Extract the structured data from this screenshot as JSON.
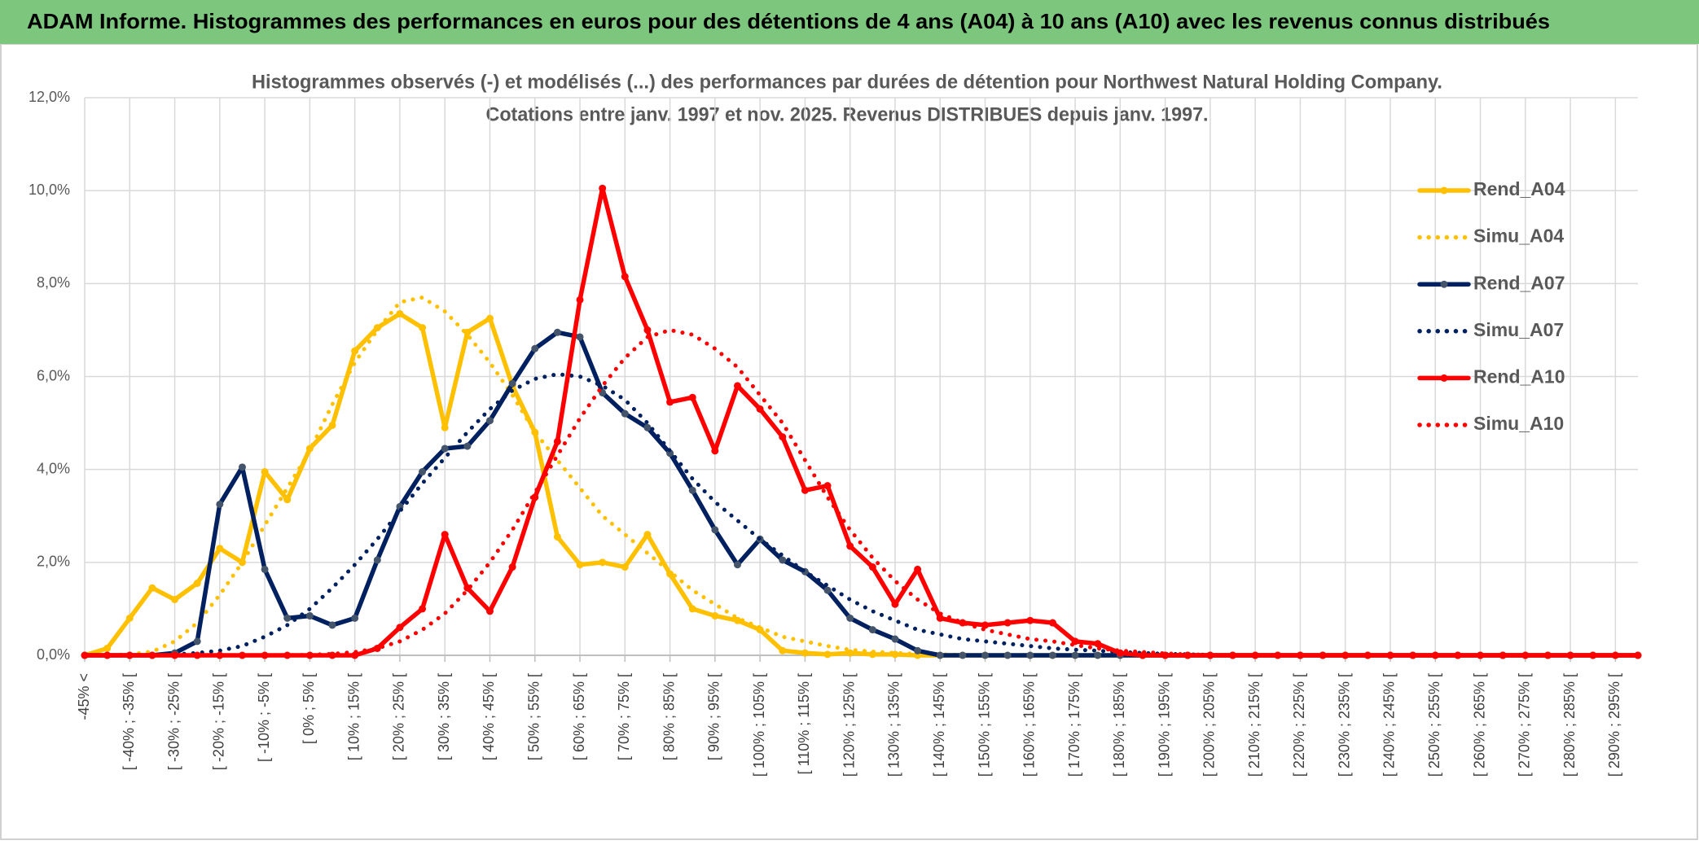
{
  "header": {
    "title": "ADAM Informe. Histogrammes des performances en euros pour des détentions de 4 ans (A04) à 10 ans (A10) avec les revenus connus distribués"
  },
  "chart_data": {
    "type": "line",
    "title": "Histogrammes observés (-) et modélisés (...) des performances par durées de détention pour Northwest Natural Holding Company.",
    "subtitle": "Cotations entre janv. 1997 et nov. 2025. Revenus DISTRIBUES depuis janv. 1997.",
    "categories": [
      "-45% <",
      null,
      "[ -40% ; -35% [",
      null,
      "[ -30% ; -25% [",
      null,
      "[ -20% ; -15% [",
      null,
      "[ -10% ; -5% [",
      null,
      "[ 0% ; 5% [",
      null,
      "[ 10% ; 15% [",
      null,
      "[ 20% ; 25% [",
      null,
      "[ 30% ; 35% [",
      null,
      "[ 40% ; 45% [",
      null,
      "[ 50% ; 55% [",
      null,
      "[ 60% ; 65% [",
      null,
      "[ 70% ; 75% [",
      null,
      "[ 80% ; 85% [",
      null,
      "[ 90% ; 95% [",
      null,
      "[ 100% ; 105% [",
      null,
      "[ 110% ; 115% [",
      null,
      "[ 120% ; 125% [",
      null,
      "[ 130% ; 135% [",
      null,
      "[ 140% ; 145% [",
      null,
      "[ 150% ; 155% [",
      null,
      "[ 160% ; 165% [",
      null,
      "[ 170% ; 175% [",
      null,
      "[ 180% ; 185% [",
      null,
      "[ 190% ; 195% [",
      null,
      "[ 200% ; 205% [",
      null,
      "[ 210% ; 215% [",
      null,
      "[ 220% ; 225% [",
      null,
      "[ 230% ; 235% [",
      null,
      "[ 240% ; 245% [",
      null,
      "[ 250% ; 255% [",
      null,
      "[ 260% ; 265% [",
      null,
      "[ 270% ; 275% [",
      null,
      "[ 280% ; 285% [",
      null,
      "[ 290% ; 295% [",
      null
    ],
    "series": [
      {
        "name": "Rend_A04",
        "color": "#ffc000",
        "line_style": "solid",
        "markers": true,
        "values": [
          0,
          0.15,
          0.8,
          1.45,
          1.2,
          1.55,
          2.3,
          2.0,
          3.95,
          3.35,
          4.45,
          4.95,
          6.55,
          7.05,
          7.35,
          7.05,
          4.9,
          6.95,
          7.25,
          5.8,
          4.8,
          2.55,
          1.95,
          2.0,
          1.9,
          2.6,
          1.75,
          1.0,
          0.85,
          0.75,
          0.55,
          0.1,
          0.05,
          0.02,
          0.05,
          0.02,
          0.02,
          0,
          0,
          0,
          0,
          0,
          0,
          0,
          0,
          0,
          0,
          0,
          0,
          0,
          0,
          0,
          0,
          0,
          0,
          0,
          0,
          0,
          0,
          0,
          0,
          0,
          0,
          0,
          0,
          0,
          0,
          0,
          0,
          0
        ]
      },
      {
        "name": "Simu_A04",
        "color": "#ffc000",
        "line_style": "dotted",
        "markers": false,
        "values": [
          0,
          0,
          0.02,
          0.08,
          0.3,
          0.7,
          1.3,
          2.0,
          2.8,
          3.6,
          4.4,
          5.4,
          6.3,
          7.0,
          7.6,
          7.7,
          7.4,
          6.9,
          6.3,
          5.6,
          4.8,
          4.2,
          3.6,
          3.0,
          2.6,
          2.2,
          1.8,
          1.4,
          1.1,
          0.8,
          0.6,
          0.4,
          0.3,
          0.2,
          0.12,
          0.08,
          0.05,
          0.03,
          0.02,
          0.01,
          0,
          0,
          0,
          0,
          0,
          0,
          0,
          0,
          0,
          0,
          0,
          0,
          0,
          0,
          0,
          0,
          0,
          0,
          0,
          0,
          0,
          0,
          0,
          0,
          0,
          0,
          0,
          0,
          0,
          0
        ]
      },
      {
        "name": "Rend_A07",
        "color": "#002060",
        "marker_color": "#44546a",
        "line_style": "solid",
        "markers": true,
        "values": [
          0,
          0,
          0,
          0,
          0.05,
          0.3,
          3.25,
          4.05,
          1.85,
          0.8,
          0.85,
          0.65,
          0.8,
          2.05,
          3.2,
          3.95,
          4.45,
          4.5,
          5.05,
          5.85,
          6.6,
          6.95,
          6.85,
          5.65,
          5.2,
          4.9,
          4.35,
          3.55,
          2.7,
          1.95,
          2.5,
          2.05,
          1.8,
          1.4,
          0.8,
          0.55,
          0.35,
          0.1,
          0,
          0,
          0,
          0,
          0,
          0,
          0,
          0,
          0,
          0,
          0,
          0,
          0,
          0,
          0,
          0,
          0,
          0,
          0,
          0,
          0,
          0,
          0,
          0,
          0,
          0,
          0,
          0,
          0,
          0,
          0,
          0
        ]
      },
      {
        "name": "Simu_A07",
        "color": "#002060",
        "line_style": "dotted",
        "markers": false,
        "values": [
          0,
          0,
          0,
          0,
          0.02,
          0.05,
          0.1,
          0.2,
          0.4,
          0.65,
          1.0,
          1.45,
          1.95,
          2.5,
          3.1,
          3.7,
          4.25,
          4.8,
          5.3,
          5.7,
          5.95,
          6.05,
          6.0,
          5.8,
          5.5,
          5.0,
          4.4,
          3.8,
          3.3,
          2.9,
          2.5,
          2.15,
          1.8,
          1.5,
          1.2,
          0.95,
          0.75,
          0.55,
          0.45,
          0.35,
          0.3,
          0.25,
          0.2,
          0.15,
          0.12,
          0.1,
          0.07,
          0.05,
          0.03,
          0.02,
          0.01,
          0,
          0,
          0,
          0,
          0,
          0,
          0,
          0,
          0,
          0,
          0,
          0,
          0,
          0,
          0,
          0,
          0,
          0,
          0
        ]
      },
      {
        "name": "Rend_A10",
        "color": "#ff0000",
        "line_style": "solid",
        "markers": true,
        "values": [
          0,
          0,
          0,
          0,
          0,
          0,
          0,
          0,
          0,
          0,
          0,
          0,
          0,
          0.15,
          0.6,
          1.0,
          2.6,
          1.45,
          0.95,
          1.9,
          3.4,
          4.6,
          7.65,
          10.05,
          8.15,
          7.0,
          5.45,
          5.55,
          4.4,
          5.8,
          5.3,
          4.7,
          3.55,
          3.65,
          2.35,
          1.9,
          1.1,
          1.85,
          0.8,
          0.7,
          0.65,
          0.7,
          0.75,
          0.7,
          0.3,
          0.25,
          0.05,
          0,
          0,
          0,
          0,
          0,
          0,
          0,
          0,
          0,
          0,
          0,
          0,
          0,
          0,
          0,
          0,
          0,
          0,
          0,
          0,
          0,
          0,
          0
        ]
      },
      {
        "name": "Simu_A10",
        "color": "#ff0000",
        "line_style": "dotted",
        "markers": false,
        "values": [
          0,
          0,
          0,
          0,
          0,
          0,
          0,
          0,
          0,
          0,
          0.01,
          0.03,
          0.07,
          0.15,
          0.3,
          0.55,
          0.9,
          1.4,
          2.0,
          2.7,
          3.5,
          4.3,
          5.1,
          5.8,
          6.4,
          6.85,
          7.0,
          6.9,
          6.6,
          6.2,
          5.6,
          5.0,
          4.2,
          3.4,
          2.7,
          2.1,
          1.6,
          1.2,
          0.9,
          0.7,
          0.55,
          0.45,
          0.35,
          0.3,
          0.22,
          0.15,
          0.1,
          0.07,
          0.04,
          0.02,
          0.01,
          0,
          0,
          0,
          0,
          0,
          0,
          0,
          0,
          0,
          0,
          0,
          0,
          0,
          0,
          0,
          0,
          0,
          0,
          0
        ]
      }
    ],
    "ylim": [
      0,
      12
    ],
    "yticks": [
      {
        "value": 0,
        "label": "0,0%"
      },
      {
        "value": 2,
        "label": "2,0%"
      },
      {
        "value": 4,
        "label": "4,0%"
      },
      {
        "value": 6,
        "label": "6,0%"
      },
      {
        "value": 8,
        "label": "8,0%"
      },
      {
        "value": 10,
        "label": "10,0%"
      },
      {
        "value": 12,
        "label": "12,0%"
      }
    ],
    "grid": true,
    "legend": "right"
  }
}
